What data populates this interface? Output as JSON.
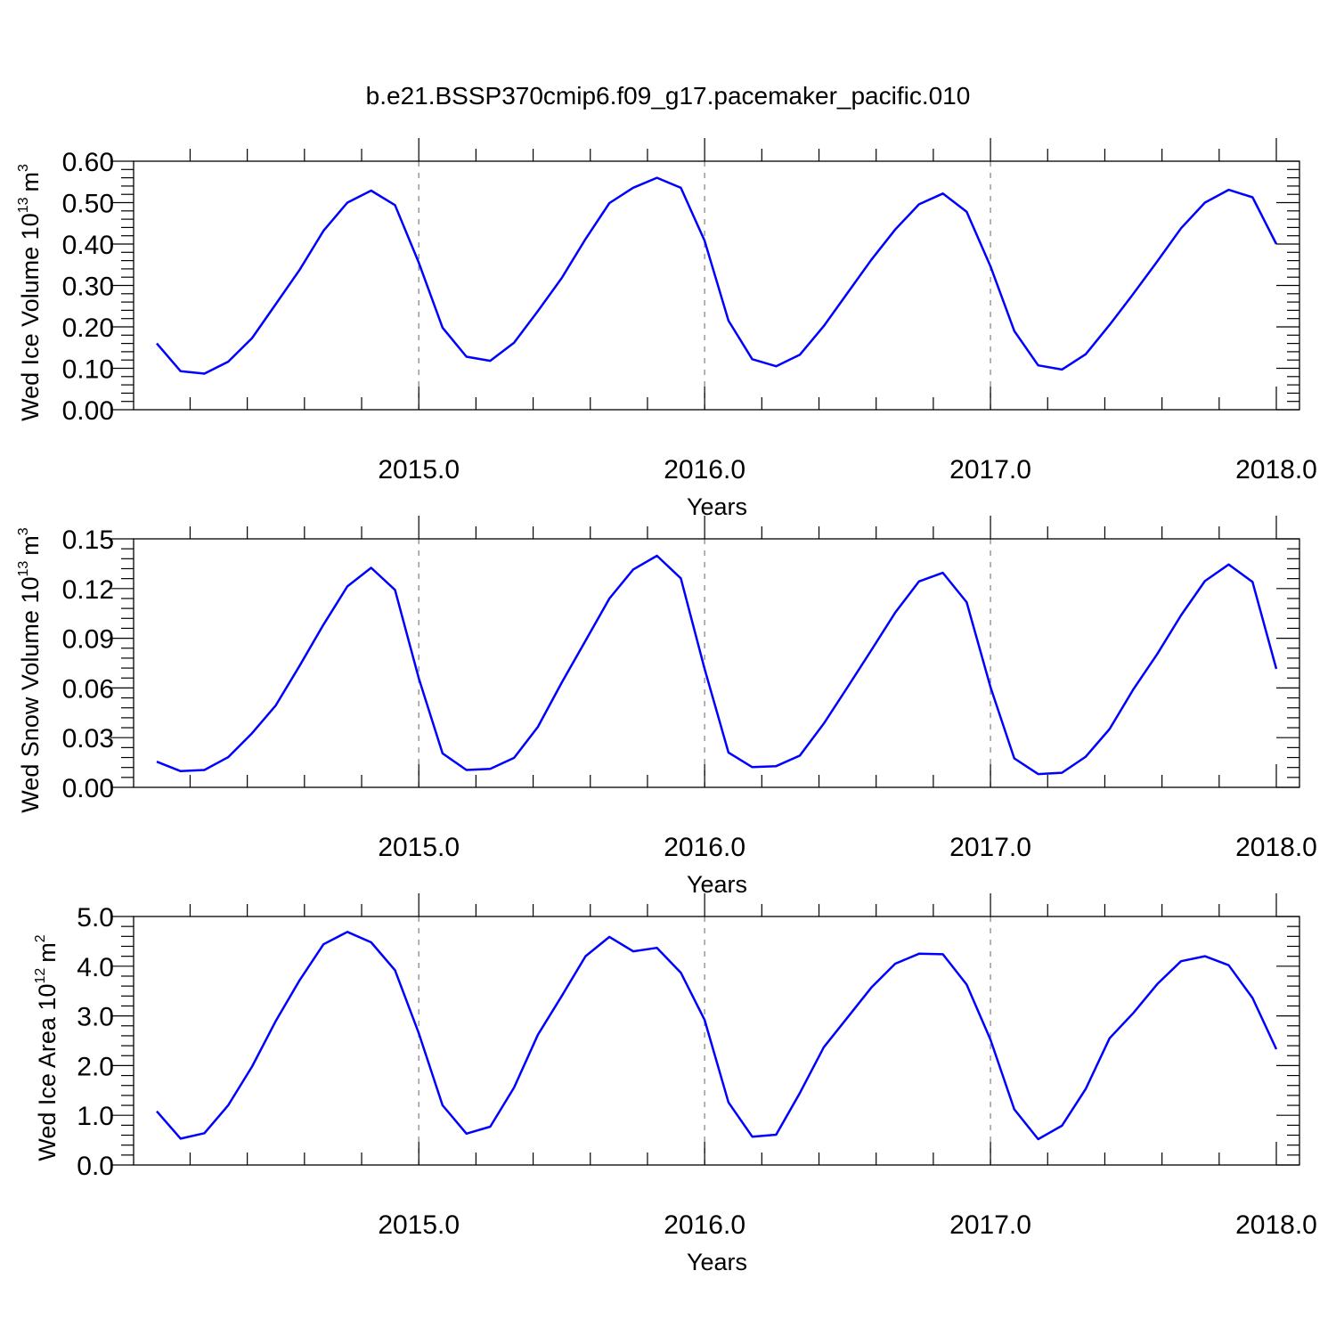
{
  "title": "b.e21.BSSP370cmip6.f09_g17.pacemaker_pacific.010",
  "colors": {
    "series": "#0000ff",
    "grid": "#999999",
    "axis": "#000000"
  },
  "chart_data": [
    {
      "type": "line",
      "ylabel_main": "Wed Ice Volume 10",
      "ylabel_exp": "13",
      "ylabel_unit": "m",
      "ylabel_unit_exp": "3",
      "xlabel": "Years",
      "xlim": [
        2014.0833,
        2018.0
      ],
      "ylim": [
        0,
        0.6
      ],
      "yticks": [
        "0.00",
        "0.10",
        "0.20",
        "0.30",
        "0.40",
        "0.50",
        "0.60"
      ],
      "yticks_values": [
        0,
        0.1,
        0.2,
        0.3,
        0.4,
        0.5,
        0.6
      ],
      "xticks": [
        "2015.0",
        "2016.0",
        "2017.0",
        "2018.0"
      ],
      "xticks_values": [
        2015,
        2016,
        2017,
        2018
      ],
      "grid": "vertical dashed at major x ticks",
      "series": [
        {
          "x": [
            2014.0833,
            2014.1667,
            2014.25,
            2014.3333,
            2014.4167,
            2014.5,
            2014.5833,
            2014.6667,
            2014.75,
            2014.8333,
            2014.9167,
            2015.0,
            2015.0833,
            2015.1667,
            2015.25,
            2015.3333,
            2015.4167,
            2015.5,
            2015.5833,
            2015.6667,
            2015.75,
            2015.8333,
            2015.9167,
            2016.0,
            2016.0833,
            2016.1667,
            2016.25,
            2016.3333,
            2016.4167,
            2016.5,
            2016.5833,
            2016.6667,
            2016.75,
            2016.8333,
            2016.9167,
            2017.0,
            2017.0833,
            2017.1667,
            2017.25,
            2017.3333,
            2017.4167,
            2017.5,
            2017.5833,
            2017.6667,
            2017.75,
            2017.8333,
            2017.9167,
            2018.0
          ],
          "values": [
            0.16,
            0.093,
            0.087,
            0.116,
            0.173,
            0.255,
            0.338,
            0.432,
            0.5,
            0.529,
            0.494,
            0.355,
            0.198,
            0.128,
            0.118,
            0.162,
            0.238,
            0.318,
            0.412,
            0.499,
            0.536,
            0.56,
            0.536,
            0.408,
            0.215,
            0.122,
            0.105,
            0.133,
            0.202,
            0.282,
            0.362,
            0.435,
            0.496,
            0.522,
            0.478,
            0.346,
            0.19,
            0.107,
            0.097,
            0.134,
            0.205,
            0.28,
            0.358,
            0.438,
            0.5,
            0.531,
            0.513,
            0.4
          ]
        }
      ]
    },
    {
      "type": "line",
      "ylabel_main": "Wed Snow Volume 10",
      "ylabel_exp": "13",
      "ylabel_unit": "m",
      "ylabel_unit_exp": "3",
      "xlabel": "Years",
      "xlim": [
        2014.0833,
        2018.0
      ],
      "ylim": [
        0,
        0.15
      ],
      "yticks": [
        "0.00",
        "0.03",
        "0.06",
        "0.09",
        "0.12",
        "0.15"
      ],
      "yticks_values": [
        0,
        0.03,
        0.06,
        0.09,
        0.12,
        0.15
      ],
      "xticks": [
        "2015.0",
        "2016.0",
        "2017.0",
        "2018.0"
      ],
      "xticks_values": [
        2015,
        2016,
        2017,
        2018
      ],
      "grid": "vertical dashed at major x ticks",
      "series": [
        {
          "x": [
            2014.0833,
            2014.1667,
            2014.25,
            2014.3333,
            2014.4167,
            2014.5,
            2014.5833,
            2014.6667,
            2014.75,
            2014.8333,
            2014.9167,
            2015.0,
            2015.0833,
            2015.1667,
            2015.25,
            2015.3333,
            2015.4167,
            2015.5,
            2015.5833,
            2015.6667,
            2015.75,
            2015.8333,
            2015.9167,
            2016.0,
            2016.0833,
            2016.1667,
            2016.25,
            2016.3333,
            2016.4167,
            2016.5,
            2016.5833,
            2016.6667,
            2016.75,
            2016.8333,
            2016.9167,
            2017.0,
            2017.0833,
            2017.1667,
            2017.25,
            2017.3333,
            2017.4167,
            2017.5,
            2017.5833,
            2017.6667,
            2017.75,
            2017.8333,
            2017.9167,
            2018.0
          ],
          "values": [
            0.0155,
            0.0098,
            0.0105,
            0.0182,
            0.0327,
            0.0495,
            0.0735,
            0.0982,
            0.1213,
            0.1325,
            0.1192,
            0.0658,
            0.0205,
            0.0105,
            0.0112,
            0.0178,
            0.0365,
            0.0632,
            0.0885,
            0.114,
            0.1315,
            0.1398,
            0.1262,
            0.0715,
            0.021,
            0.0122,
            0.0128,
            0.0192,
            0.0385,
            0.0605,
            0.0828,
            0.1055,
            0.1243,
            0.1295,
            0.1118,
            0.0605,
            0.0175,
            0.008,
            0.0088,
            0.0185,
            0.0352,
            0.0592,
            0.0805,
            0.1038,
            0.1245,
            0.1345,
            0.124,
            0.0715
          ]
        }
      ]
    },
    {
      "type": "line",
      "ylabel_main": "Wed Ice Area 10",
      "ylabel_exp": "12",
      "ylabel_unit": "m",
      "ylabel_unit_exp": "2",
      "xlabel": "Years",
      "xlim": [
        2014.0833,
        2018.0
      ],
      "ylim": [
        0,
        5.0
      ],
      "yticks": [
        "0.0",
        "1.0",
        "2.0",
        "3.0",
        "4.0",
        "5.0"
      ],
      "yticks_values": [
        0,
        1,
        2,
        3,
        4,
        5
      ],
      "xticks": [
        "2015.0",
        "2016.0",
        "2017.0",
        "2018.0"
      ],
      "xticks_values": [
        2015,
        2016,
        2017,
        2018
      ],
      "grid": "vertical dashed at major x ticks",
      "series": [
        {
          "x": [
            2014.0833,
            2014.1667,
            2014.25,
            2014.3333,
            2014.4167,
            2014.5,
            2014.5833,
            2014.6667,
            2014.75,
            2014.8333,
            2014.9167,
            2015.0,
            2015.0833,
            2015.1667,
            2015.25,
            2015.3333,
            2015.4167,
            2015.5,
            2015.5833,
            2015.6667,
            2015.75,
            2015.8333,
            2015.9167,
            2016.0,
            2016.0833,
            2016.1667,
            2016.25,
            2016.3333,
            2016.4167,
            2016.5,
            2016.5833,
            2016.6667,
            2016.75,
            2016.8333,
            2016.9167,
            2017.0,
            2017.0833,
            2017.1667,
            2017.25,
            2017.3333,
            2017.4167,
            2017.5,
            2017.5833,
            2017.6667,
            2017.75,
            2017.8333,
            2017.9167,
            2018.0
          ],
          "values": [
            1.08,
            0.53,
            0.64,
            1.2,
            1.98,
            2.9,
            3.72,
            4.44,
            4.69,
            4.48,
            3.92,
            2.65,
            1.2,
            0.63,
            0.77,
            1.56,
            2.62,
            3.4,
            4.2,
            4.59,
            4.3,
            4.37,
            3.87,
            2.92,
            1.26,
            0.57,
            0.61,
            1.45,
            2.37,
            2.97,
            3.57,
            4.05,
            4.25,
            4.24,
            3.63,
            2.52,
            1.12,
            0.52,
            0.79,
            1.53,
            2.55,
            3.06,
            3.64,
            4.1,
            4.2,
            4.02,
            3.36,
            2.33
          ]
        }
      ]
    }
  ]
}
